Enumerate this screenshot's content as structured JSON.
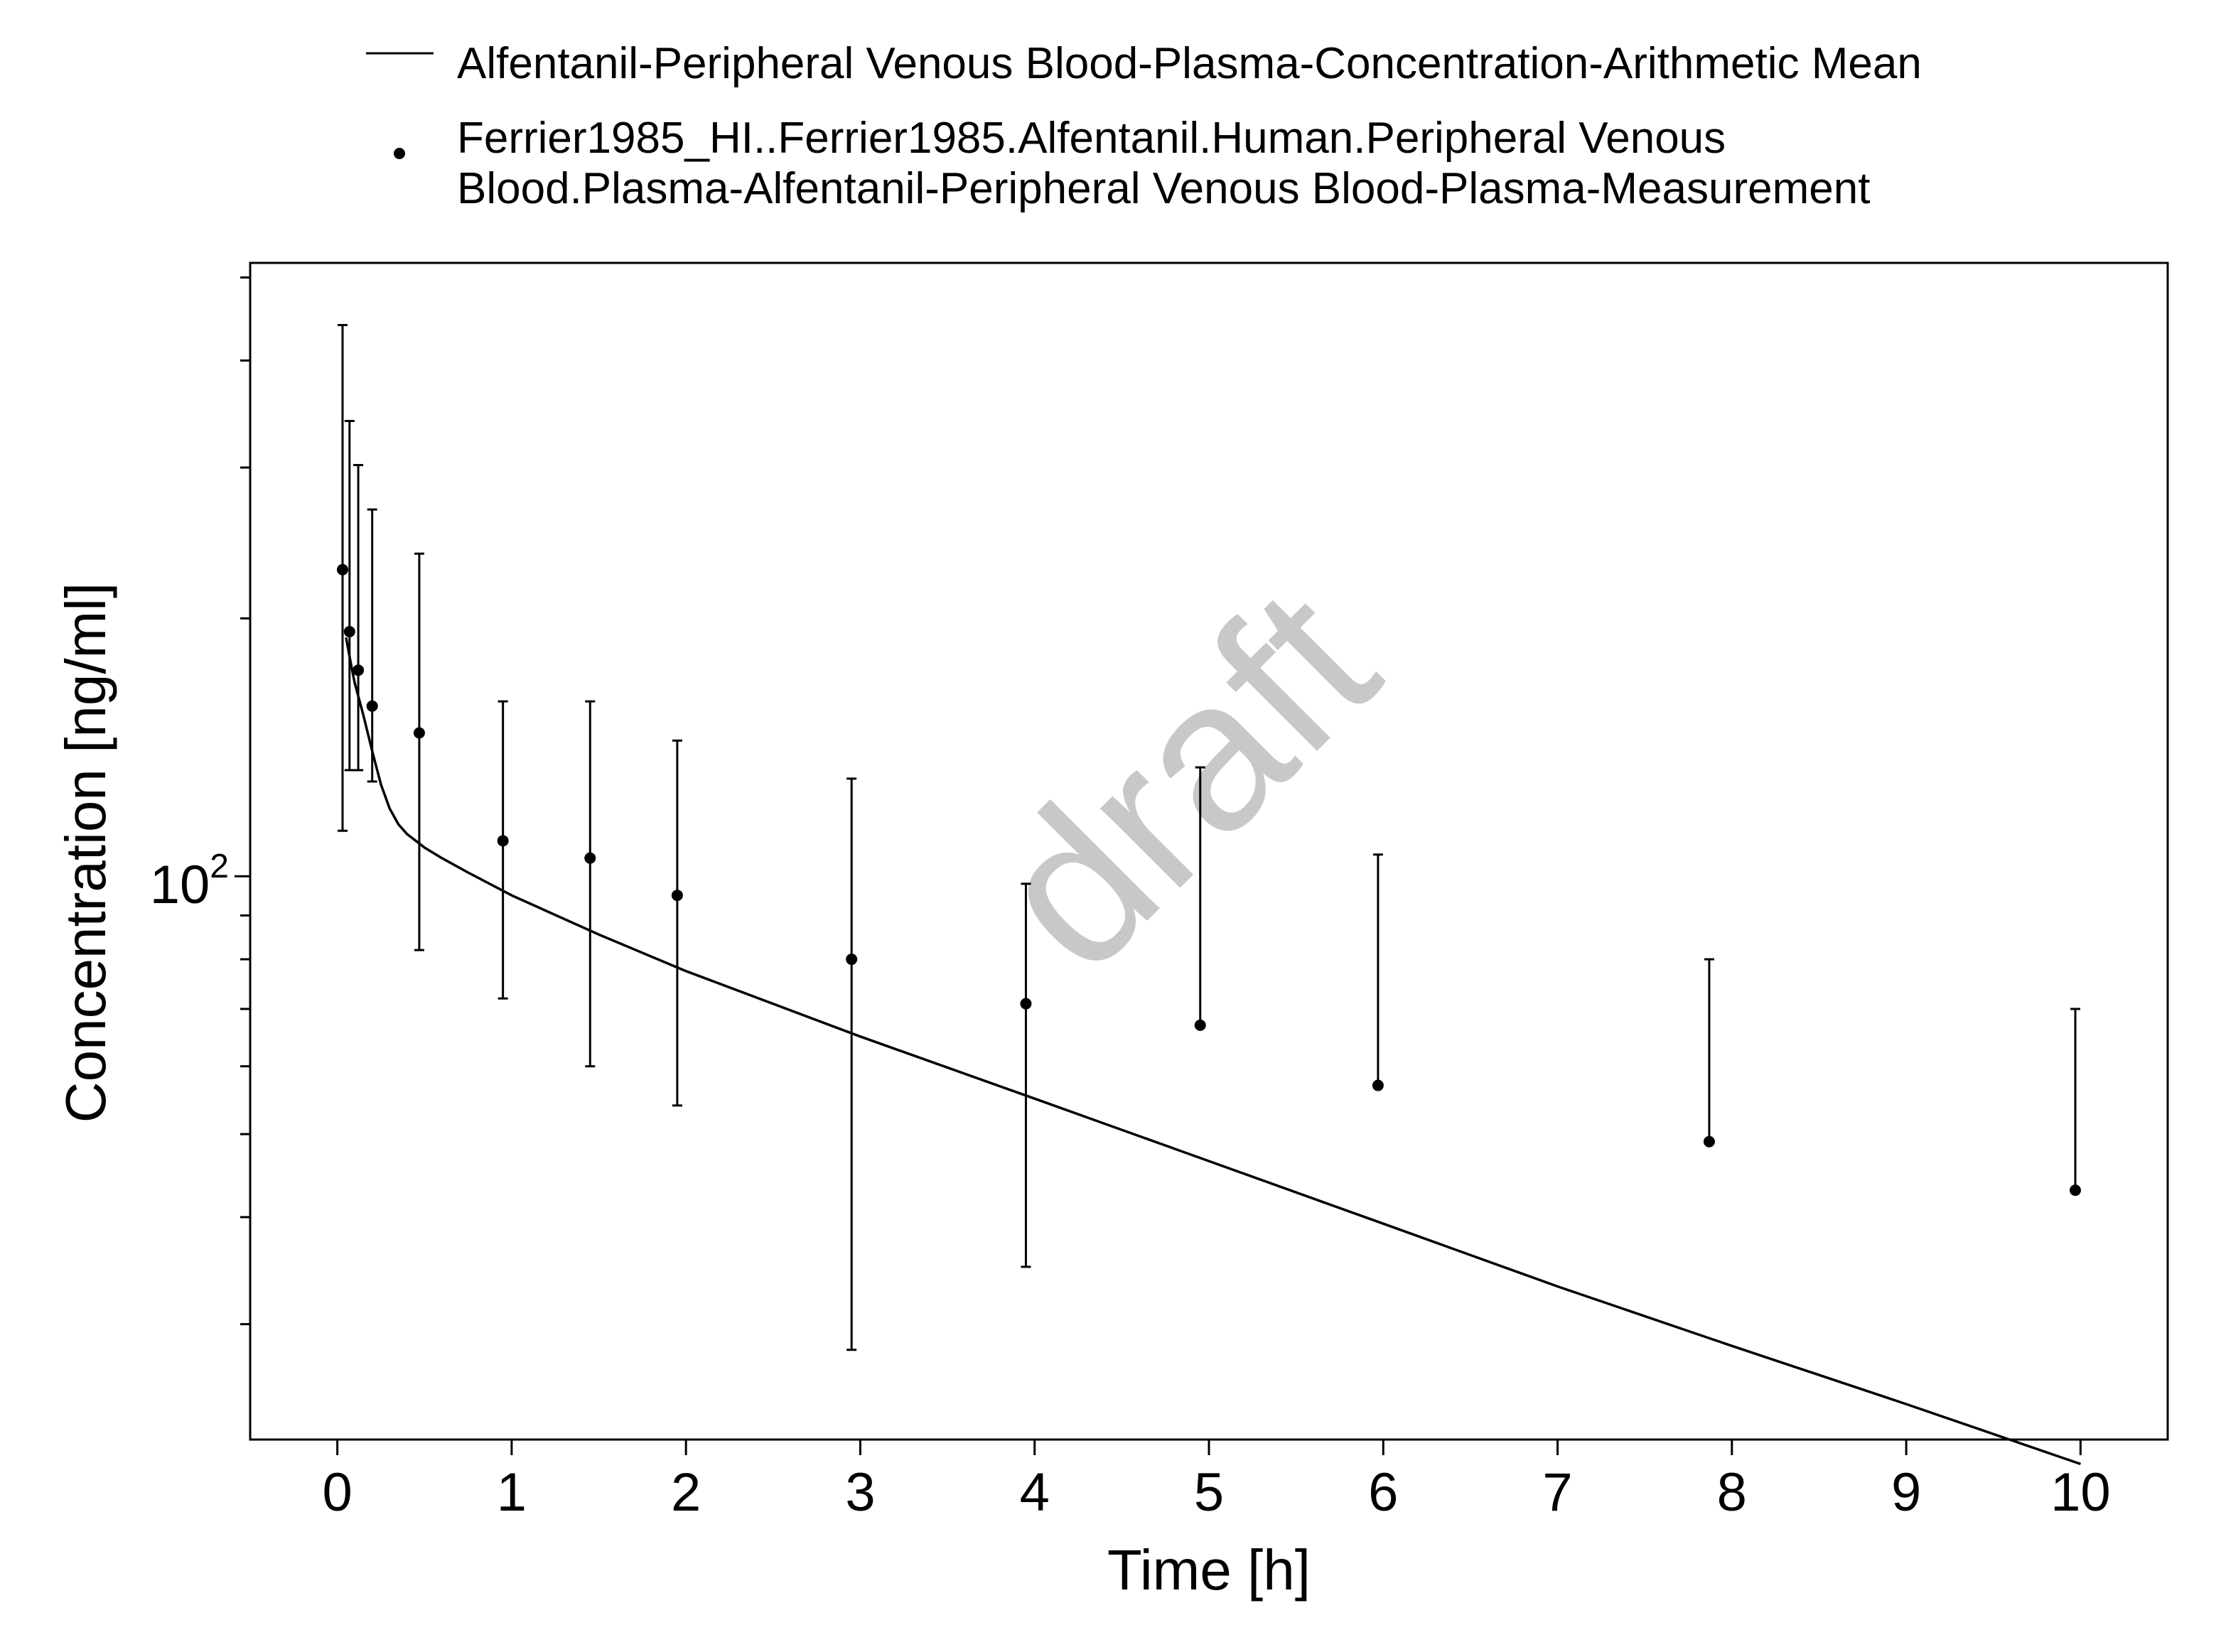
{
  "chart_data": {
    "type": "scatter",
    "xlabel": "Time [h]",
    "ylabel": "Concentration [ng/ml]",
    "watermark": "draft",
    "y_scale": "log",
    "xlim": [
      -0.5,
      10.5
    ],
    "ylim": [
      22,
      520
    ],
    "x_ticks": [
      0,
      1,
      2,
      3,
      4,
      5,
      6,
      7,
      8,
      9,
      10
    ],
    "x_tick_labels": [
      "0",
      "1",
      "2",
      "3",
      "4",
      "5",
      "6",
      "7",
      "8",
      "9",
      "10"
    ],
    "y_major_tick": {
      "value": 100,
      "base": "10",
      "exponent": "2"
    },
    "y_minor_ticks": [
      30,
      40,
      50,
      60,
      70,
      80,
      90,
      200,
      300,
      400,
      500
    ],
    "grid": false,
    "legend_position": "top",
    "series": [
      {
        "name": "Alfentanil-Peripheral Venous Blood-Plasma-Concentration-Arithmetic Mean",
        "kind": "line",
        "color": "#000000",
        "x": [
          0.05,
          0.08,
          0.1,
          0.15,
          0.2,
          0.25,
          0.3,
          0.35,
          0.4,
          0.45,
          0.5,
          0.6,
          0.75,
          1.0,
          1.5,
          2.0,
          3.0,
          4.0,
          5.0,
          6.0,
          7.0,
          8.0,
          9.0,
          10.0
        ],
        "y": [
          190,
          176,
          168,
          154,
          140,
          128,
          120,
          115,
          112,
          110,
          108,
          105,
          101,
          95,
          85.5,
          77.5,
          65,
          55,
          46.5,
          39.3,
          33.2,
          28.3,
          24.2,
          20.6
        ]
      },
      {
        "name_lines": [
          "Ferrier1985_HI..Ferrier1985.Alfentanil.Human.Peripheral Venous",
          "Blood.Plasma-Alfentanil-Peripheral Venous Blood-Plasma-Measurement"
        ],
        "kind": "scatter_errorbar",
        "color": "#000000",
        "points": [
          {
            "x": 0.03,
            "y": 228,
            "lo": 113,
            "hi": 440
          },
          {
            "x": 0.07,
            "y": 193,
            "lo": 133,
            "hi": 340
          },
          {
            "x": 0.12,
            "y": 174,
            "lo": 133,
            "hi": 302
          },
          {
            "x": 0.2,
            "y": 158,
            "lo": 129,
            "hi": 268
          },
          {
            "x": 0.47,
            "y": 147,
            "lo": 82,
            "hi": 238
          },
          {
            "x": 0.95,
            "y": 110,
            "lo": 72,
            "hi": 160
          },
          {
            "x": 1.45,
            "y": 105,
            "lo": 60,
            "hi": 160
          },
          {
            "x": 1.95,
            "y": 95,
            "lo": 54,
            "hi": 144
          },
          {
            "x": 2.95,
            "y": 80,
            "lo": 28,
            "hi": 130
          },
          {
            "x": 3.95,
            "y": 71,
            "lo": 35,
            "hi": 98
          },
          {
            "x": 4.95,
            "y": 67,
            "lo": null,
            "hi": 134
          },
          {
            "x": 5.97,
            "y": 57,
            "lo": null,
            "hi": 106
          },
          {
            "x": 7.87,
            "y": 49,
            "lo": null,
            "hi": 80
          },
          {
            "x": 9.97,
            "y": 43,
            "lo": null,
            "hi": 70
          }
        ]
      }
    ]
  }
}
